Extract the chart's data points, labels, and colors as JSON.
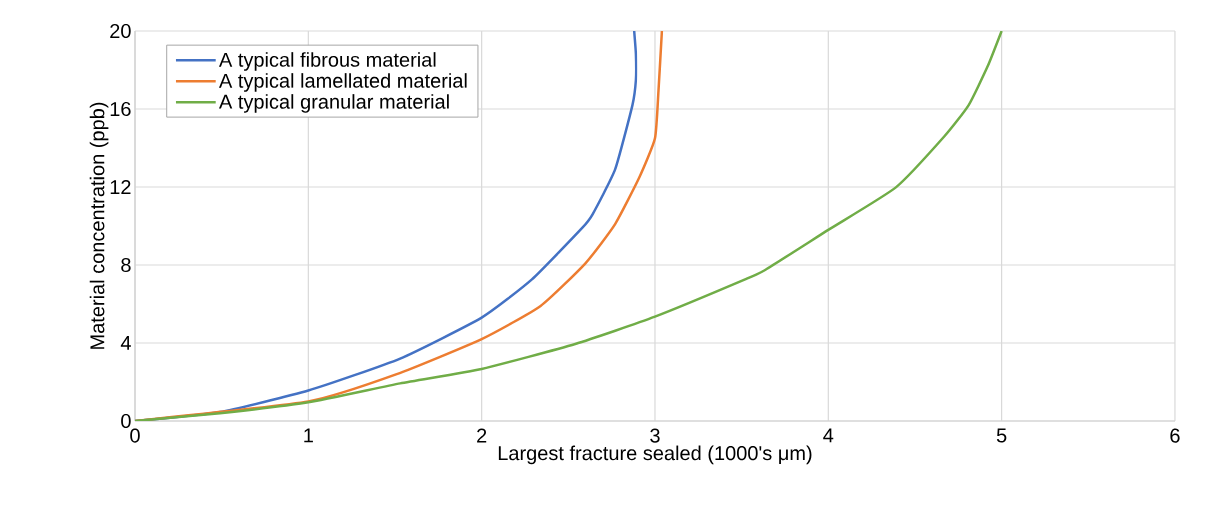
{
  "chart_data": {
    "type": "line",
    "xlabel": "Largest fracture sealed (1000's μm)",
    "ylabel": "Material concentration (ppb)",
    "xlim": [
      0,
      6
    ],
    "xticks": [
      0,
      1,
      2,
      3,
      4,
      5,
      6
    ],
    "ylim": [
      0,
      20
    ],
    "yticks": [
      0,
      4,
      8,
      12,
      16,
      20
    ],
    "grid": true,
    "legend": "top left",
    "series": [
      {
        "name": "A typical fibrous material",
        "color": "#4472c4",
        "x": [
          0,
          0.49,
          1.0,
          1.53,
          2.0,
          2.29,
          2.58,
          2.64,
          2.77,
          2.87,
          2.89,
          2.89,
          2.88
        ],
        "values": [
          0,
          0.46,
          1.56,
          3.2,
          5.3,
          7.26,
          9.9,
          10.6,
          12.9,
          16.2,
          17.5,
          18.8,
          20
        ]
      },
      {
        "name": "A typical lamellated material",
        "color": "#ed7d31",
        "x": [
          0,
          1.0,
          1.51,
          2.0,
          2.34,
          2.6,
          2.77,
          2.91,
          3.0,
          3.02,
          3.04
        ],
        "values": [
          0,
          1.0,
          2.4,
          4.2,
          5.9,
          8.1,
          10.1,
          12.5,
          14.5,
          16.9,
          20
        ]
      },
      {
        "name": "A typical granular material",
        "color": "#70ad47",
        "x": [
          0,
          0.49,
          1.0,
          1.53,
          2.0,
          2.54,
          3.0,
          3.52,
          3.64,
          4.0,
          4.39,
          4.67,
          4.81,
          4.92,
          5.0
        ],
        "values": [
          0,
          0.4,
          0.96,
          1.93,
          2.67,
          3.95,
          5.35,
          7.26,
          7.77,
          9.8,
          11.98,
          14.6,
          16.2,
          18.2,
          20
        ]
      }
    ]
  }
}
